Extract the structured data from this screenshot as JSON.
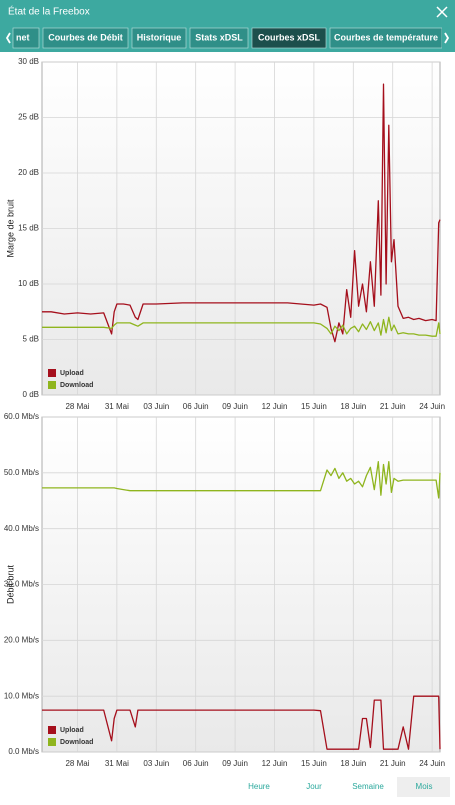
{
  "header": {
    "title": "État de la Freebox"
  },
  "tabs": [
    "net",
    "Courbes de Débit",
    "Historique",
    "Stats xDSL",
    "Courbes xDSL",
    "Courbes de température"
  ],
  "buttons": [
    "Heure",
    "Jour",
    "Semaine",
    "Mois"
  ],
  "chart_data": [
    {
      "type": "line",
      "ylabel": "Marge de bruit",
      "grid": true,
      "legend": "lower left",
      "x": [
        25.3,
        26,
        27,
        28,
        29,
        30,
        30.6,
        30.8,
        31,
        31.5,
        32,
        32.4,
        32.6,
        33,
        34,
        36,
        38,
        40,
        42,
        44,
        46,
        46.5,
        47,
        47.3,
        47.6,
        47.9,
        48.2,
        48.5,
        48.8,
        49.1,
        49.4,
        49.7,
        50,
        50.3,
        50.6,
        50.9,
        51.1,
        51.3,
        51.5,
        51.7,
        51.9,
        52.1,
        52.4,
        52.8,
        53.2,
        53.6,
        54,
        54.5,
        55,
        55.3,
        55.5,
        55.6
      ],
      "xlim": [
        25.3,
        55.6
      ],
      "xticks": [
        {
          "value": 28,
          "label": "28 Mai"
        },
        {
          "value": 31,
          "label": "31 Mai"
        },
        {
          "value": 34,
          "label": "03 Juin"
        },
        {
          "value": 37,
          "label": "06 Juin"
        },
        {
          "value": 40,
          "label": "09 Juin"
        },
        {
          "value": 43,
          "label": "12 Juin"
        },
        {
          "value": 46,
          "label": "15 Juin"
        },
        {
          "value": 49,
          "label": "18 Juin"
        },
        {
          "value": 52,
          "label": "21 Juin"
        },
        {
          "value": 55,
          "label": "24 Juin"
        }
      ],
      "ylim": [
        0,
        30
      ],
      "yticks": [
        {
          "value": 0,
          "label": "0 dB"
        },
        {
          "value": 5,
          "label": "5 dB"
        },
        {
          "value": 10,
          "label": "10 dB"
        },
        {
          "value": 15,
          "label": "15 dB"
        },
        {
          "value": 20,
          "label": "20 dB"
        },
        {
          "value": 25,
          "label": "25 dB"
        },
        {
          "value": 30,
          "label": "30 dB"
        }
      ],
      "series": [
        {
          "name": "Upload",
          "color": "#a50f1c",
          "values": [
            7.5,
            7.5,
            7.3,
            7.4,
            7.3,
            7.4,
            5.5,
            7.5,
            8.2,
            8.2,
            8.1,
            7.0,
            6.8,
            8.2,
            8.2,
            8.3,
            8.3,
            8.3,
            8.3,
            8.3,
            8.1,
            8.2,
            7.9,
            6.0,
            4.8,
            6.5,
            5.5,
            9.5,
            7.0,
            13.0,
            8.0,
            10.0,
            7.5,
            12.0,
            8.0,
            17.5,
            9.0,
            28.0,
            10.0,
            24.3,
            12.0,
            14.0,
            8.0,
            6.9,
            7.0,
            6.8,
            6.9,
            6.7,
            6.8,
            6.7,
            15.5,
            15.8
          ]
        },
        {
          "name": "Download",
          "color": "#8fb51e",
          "values": [
            6.1,
            6.1,
            6.1,
            6.1,
            6.1,
            6.1,
            6.0,
            6.3,
            6.5,
            6.5,
            6.5,
            6.3,
            6.2,
            6.5,
            6.5,
            6.5,
            6.5,
            6.5,
            6.5,
            6.5,
            6.5,
            6.4,
            6.0,
            5.5,
            6.2,
            5.8,
            6.3,
            5.5,
            6.0,
            6.2,
            5.7,
            6.4,
            5.9,
            6.6,
            5.8,
            6.5,
            5.4,
            6.8,
            5.6,
            7.0,
            5.8,
            6.3,
            5.5,
            5.6,
            5.5,
            5.5,
            5.4,
            5.4,
            5.3,
            5.3,
            6.5,
            5.5
          ]
        }
      ]
    },
    {
      "type": "line",
      "ylabel": "Débit brut",
      "grid": true,
      "legend": "lower left",
      "x": [
        25.3,
        26,
        27,
        28,
        29,
        30,
        30.6,
        30.8,
        31,
        31.5,
        32,
        32.4,
        32.6,
        33,
        34,
        36,
        38,
        40,
        42,
        44,
        46,
        46.5,
        47,
        47.3,
        47.6,
        47.9,
        48.2,
        48.5,
        48.8,
        49.1,
        49.4,
        49.7,
        50,
        50.3,
        50.6,
        50.9,
        51.1,
        51.3,
        51.5,
        51.7,
        51.9,
        52.1,
        52.4,
        52.8,
        53.2,
        53.6,
        54,
        54.5,
        55,
        55.3,
        55.5,
        55.6
      ],
      "xlim": [
        25.3,
        55.6
      ],
      "xticks": [
        {
          "value": 28,
          "label": "28 Mai"
        },
        {
          "value": 31,
          "label": "31 Mai"
        },
        {
          "value": 34,
          "label": "03 Juin"
        },
        {
          "value": 37,
          "label": "06 Juin"
        },
        {
          "value": 40,
          "label": "09 Juin"
        },
        {
          "value": 43,
          "label": "12 Juin"
        },
        {
          "value": 46,
          "label": "15 Juin"
        },
        {
          "value": 49,
          "label": "18 Juin"
        },
        {
          "value": 52,
          "label": "21 Juin"
        },
        {
          "value": 55,
          "label": "24 Juin"
        }
      ],
      "ylim": [
        0,
        60
      ],
      "yticks": [
        {
          "value": 0,
          "label": "0.0 Mb/s"
        },
        {
          "value": 10,
          "label": "10.0 Mb/s"
        },
        {
          "value": 20,
          "label": "20.0 Mb/s"
        },
        {
          "value": 30,
          "label": "30.0 Mb/s"
        },
        {
          "value": 40,
          "label": "40.0 Mb/s"
        },
        {
          "value": 50,
          "label": "50.0 Mb/s"
        },
        {
          "value": 60,
          "label": "60.0 Mb/s"
        }
      ],
      "series": [
        {
          "name": "Upload",
          "color": "#a50f1c",
          "values": [
            7.5,
            7.5,
            7.5,
            7.5,
            7.5,
            7.5,
            2.0,
            6.0,
            7.5,
            7.5,
            7.5,
            4.5,
            7.5,
            7.5,
            7.5,
            7.5,
            7.5,
            7.5,
            7.5,
            7.5,
            7.5,
            7.4,
            0.5,
            0.5,
            0.5,
            0.5,
            0.5,
            0.5,
            0.5,
            0.5,
            0.5,
            6.0,
            6.0,
            0.8,
            9.3,
            9.3,
            9.3,
            0.5,
            0.5,
            0.5,
            0.5,
            0.5,
            0.5,
            4.5,
            0.5,
            10.0,
            10.0,
            10.0,
            10.0,
            10.0,
            10.0,
            0.5
          ]
        },
        {
          "name": "Download",
          "color": "#8fb51e",
          "values": [
            47.3,
            47.3,
            47.3,
            47.3,
            47.3,
            47.3,
            47.3,
            47.3,
            47.2,
            47.0,
            46.8,
            46.8,
            46.8,
            46.8,
            46.8,
            46.8,
            46.8,
            46.8,
            46.8,
            46.8,
            46.8,
            46.8,
            50.5,
            49.5,
            50.8,
            49.0,
            50.0,
            48.5,
            49.0,
            48.0,
            48.5,
            47.5,
            49.5,
            51.0,
            47.0,
            52.0,
            46.0,
            51.5,
            48.0,
            52.0,
            46.5,
            49.0,
            48.5,
            48.7,
            48.7,
            48.7,
            48.7,
            48.7,
            48.7,
            48.7,
            45.5,
            50.0
          ]
        }
      ]
    }
  ]
}
